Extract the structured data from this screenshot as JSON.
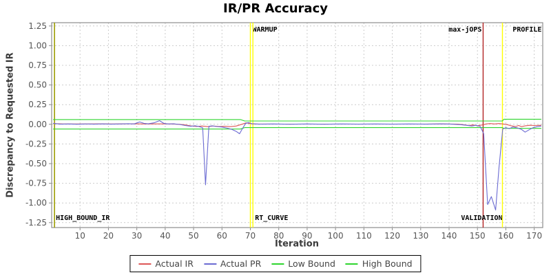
{
  "title": "IR/PR Accuracy",
  "chart_data": {
    "type": "line",
    "title": "IR/PR Accuracy",
    "xlabel": "Iteration",
    "ylabel": "Discrepancy to Requested IR",
    "xlim": [
      0,
      173
    ],
    "ylim": [
      -1.25,
      1.25
    ],
    "x_ticks": [
      10,
      20,
      30,
      40,
      50,
      60,
      70,
      80,
      90,
      100,
      110,
      120,
      130,
      140,
      150,
      160,
      170
    ],
    "y_ticks": [
      1.25,
      1.0,
      0.75,
      0.5,
      0.25,
      0.0,
      -0.25,
      -0.5,
      -0.75,
      -1.0,
      -1.25
    ],
    "grid": true,
    "legend_position": "bottom",
    "colors": {
      "grid": "#cccccc",
      "axis": "#8c8c8c",
      "tick_label": "#555555",
      "marker_label": "#000000",
      "plot_background": "#ffffff"
    },
    "markers": [
      {
        "x": 1,
        "color": "#9c9c00",
        "width": 1.6,
        "label": "HIGH_BOUND_IR",
        "label_pos": "bottom",
        "anchor": "start",
        "dx": 2
      },
      {
        "x": 70,
        "color": "#ffff00",
        "width": 1.4,
        "label": "WARMUP",
        "label_pos": "top",
        "anchor": "start",
        "dx": 3
      },
      {
        "x": 70.9,
        "color": "#ffff00",
        "width": 1.4,
        "label": "RT_CURVE",
        "label_pos": "bottom",
        "anchor": "start",
        "dx": 3
      },
      {
        "x": 152,
        "color": "#b22222",
        "width": 1.4,
        "label": "max-jOPS",
        "label_pos": "top",
        "anchor": "end",
        "dx": -2
      },
      {
        "x": 152,
        "color": "none",
        "width": 0,
        "label": "VALIDATION",
        "label_pos": "bottom",
        "anchor": "middle",
        "dx": -2
      },
      {
        "x": 158.8,
        "color": "#ffff00",
        "width": 1.4,
        "label": "PROFILE",
        "label_pos": "top",
        "anchor": "end",
        "dx": 57
      }
    ],
    "series": [
      {
        "name": "Actual IR",
        "color": "#dd5555",
        "points": [
          [
            0.5,
            0.01
          ],
          [
            4,
            0.004
          ],
          [
            10,
            0.004
          ],
          [
            16,
            0.005
          ],
          [
            22,
            0.004
          ],
          [
            28,
            0.006
          ],
          [
            33,
            0.004
          ],
          [
            38,
            0.005
          ],
          [
            42,
            0.004
          ],
          [
            45,
            0.0
          ],
          [
            47,
            -0.008
          ],
          [
            49,
            -0.02
          ],
          [
            51,
            -0.028
          ],
          [
            53,
            -0.022
          ],
          [
            55,
            -0.03
          ],
          [
            57,
            -0.022
          ],
          [
            59,
            -0.028
          ],
          [
            61,
            -0.025
          ],
          [
            63,
            -0.03
          ],
          [
            65,
            -0.022
          ],
          [
            67,
            0.0
          ],
          [
            68.5,
            0.018
          ],
          [
            69.5,
            0.012
          ],
          [
            71,
            0.004
          ],
          [
            80,
            0.003
          ],
          [
            90,
            0.003
          ],
          [
            100,
            0.003
          ],
          [
            110,
            0.003
          ],
          [
            120,
            0.003
          ],
          [
            130,
            0.003
          ],
          [
            138,
            0.004
          ],
          [
            143,
            0.002
          ],
          [
            145,
            -0.004
          ],
          [
            147,
            -0.015
          ],
          [
            148.5,
            -0.008
          ],
          [
            150,
            -0.018
          ],
          [
            151,
            -0.012
          ],
          [
            152,
            -0.006
          ],
          [
            153,
            0.004
          ],
          [
            154.5,
            0.01
          ],
          [
            156,
            0.004
          ],
          [
            157.5,
            0.01
          ],
          [
            159,
            0.004
          ],
          [
            160.5,
            -0.004
          ],
          [
            162,
            -0.02
          ],
          [
            163.5,
            -0.028
          ],
          [
            164.5,
            -0.015
          ],
          [
            165.5,
            -0.03
          ],
          [
            167,
            -0.018
          ],
          [
            168.5,
            -0.012
          ],
          [
            170,
            -0.015
          ],
          [
            172.5,
            -0.012
          ]
        ]
      },
      {
        "name": "Actual PR",
        "color": "#6a6ad2",
        "points": [
          [
            0.5,
            0.012
          ],
          [
            3,
            0.002
          ],
          [
            6,
            0.004
          ],
          [
            9,
            0.001
          ],
          [
            12,
            0.004
          ],
          [
            15,
            0.002
          ],
          [
            18,
            0.005
          ],
          [
            21,
            0.002
          ],
          [
            24,
            0.004
          ],
          [
            27,
            0.008
          ],
          [
            29,
            0.004
          ],
          [
            31,
            0.03
          ],
          [
            32.5,
            0.012
          ],
          [
            34,
            0.006
          ],
          [
            36,
            0.018
          ],
          [
            38,
            0.046
          ],
          [
            39.5,
            0.012
          ],
          [
            41,
            0.004
          ],
          [
            43,
            0.006
          ],
          [
            45,
            -0.002
          ],
          [
            47,
            -0.015
          ],
          [
            49,
            -0.025
          ],
          [
            50.5,
            -0.018
          ],
          [
            52,
            -0.03
          ],
          [
            53.2,
            -0.045
          ],
          [
            54.2,
            -0.77
          ],
          [
            55.4,
            -0.025
          ],
          [
            56.5,
            -0.02
          ],
          [
            58,
            -0.028
          ],
          [
            60,
            -0.035
          ],
          [
            62,
            -0.05
          ],
          [
            63.5,
            -0.065
          ],
          [
            65,
            -0.09
          ],
          [
            66.2,
            -0.12
          ],
          [
            67.2,
            -0.055
          ],
          [
            68.3,
            0.01
          ],
          [
            69.3,
            0.022
          ],
          [
            70.5,
            0.008
          ],
          [
            73,
            0.002
          ],
          [
            78,
            0.004
          ],
          [
            84,
            0.001
          ],
          [
            90,
            0.004
          ],
          [
            96,
            0.001
          ],
          [
            102,
            0.004
          ],
          [
            108,
            0.002
          ],
          [
            114,
            0.004
          ],
          [
            120,
            0.002
          ],
          [
            126,
            0.004
          ],
          [
            132,
            0.002
          ],
          [
            137,
            0.005
          ],
          [
            141,
            0.002
          ],
          [
            144,
            -0.004
          ],
          [
            146,
            -0.012
          ],
          [
            148,
            -0.022
          ],
          [
            149.5,
            -0.012
          ],
          [
            151,
            -0.028
          ],
          [
            152.2,
            -0.12
          ],
          [
            153.6,
            -1.02
          ],
          [
            154.9,
            -0.92
          ],
          [
            156.4,
            -1.09
          ],
          [
            157.6,
            -0.55
          ],
          [
            158.9,
            -0.06
          ],
          [
            160,
            -0.042
          ],
          [
            161.2,
            -0.055
          ],
          [
            162.5,
            -0.035
          ],
          [
            164,
            -0.045
          ],
          [
            165.5,
            -0.065
          ],
          [
            166.8,
            -0.1
          ],
          [
            168.2,
            -0.07
          ],
          [
            169.5,
            -0.045
          ],
          [
            171,
            -0.03
          ],
          [
            172.5,
            -0.022
          ]
        ]
      },
      {
        "name": "Low Bound",
        "color": "#2dd42d",
        "points": [
          [
            0.5,
            -0.06
          ],
          [
            66.5,
            -0.06
          ],
          [
            68,
            -0.042
          ],
          [
            158.8,
            -0.042
          ],
          [
            159.3,
            -0.052
          ],
          [
            172.5,
            -0.052
          ]
        ]
      },
      {
        "name": "High Bound",
        "color": "#2dd42d",
        "points": [
          [
            0.5,
            0.06
          ],
          [
            66.5,
            0.06
          ],
          [
            68,
            0.042
          ],
          [
            158.8,
            0.042
          ],
          [
            159.3,
            0.065
          ],
          [
            172.5,
            0.065
          ]
        ]
      }
    ]
  }
}
